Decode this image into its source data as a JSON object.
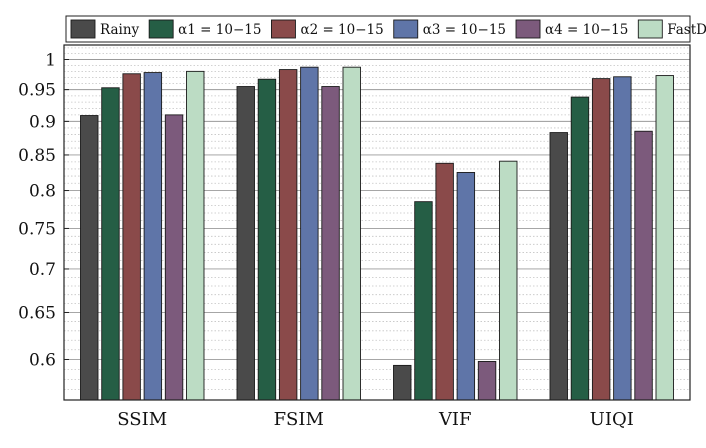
{
  "chart_data": {
    "type": "bar",
    "title": "",
    "xlabel": "",
    "ylabel": "",
    "categories": [
      "SSIM",
      "FSIM",
      "VIF",
      "UIQI"
    ],
    "series": [
      {
        "name": "Rainy",
        "color": "#4a4a4a",
        "values": [
          0.909,
          0.955,
          0.594,
          0.883
        ]
      },
      {
        "name": "α1 = 10−15",
        "color": "#255e45",
        "values": [
          0.953,
          0.967,
          0.785,
          0.938
        ]
      },
      {
        "name": "α2 = 10−15",
        "color": "#8a4a4a",
        "values": [
          0.976,
          0.983,
          0.838,
          0.968
        ]
      },
      {
        "name": "α3 = 10−15",
        "color": "#5f75a8",
        "values": [
          0.978,
          0.987,
          0.825,
          0.971
        ]
      },
      {
        "name": "α4 = 10−15",
        "color": "#7c5a7c",
        "values": [
          0.91,
          0.955,
          0.598,
          0.885
        ]
      },
      {
        "name": "FastDeRain",
        "color": "#bcdcc4",
        "values": [
          0.98,
          0.987,
          0.841,
          0.973
        ]
      }
    ],
    "yscale": "log",
    "ylim": [
      0.56,
      1.025
    ],
    "y_ticks": [
      "0.6",
      "0.65",
      "0.7",
      "0.75",
      "0.8",
      "0.85",
      "0.9",
      "0.95",
      "1"
    ],
    "grid": true,
    "legend_position": "top"
  }
}
